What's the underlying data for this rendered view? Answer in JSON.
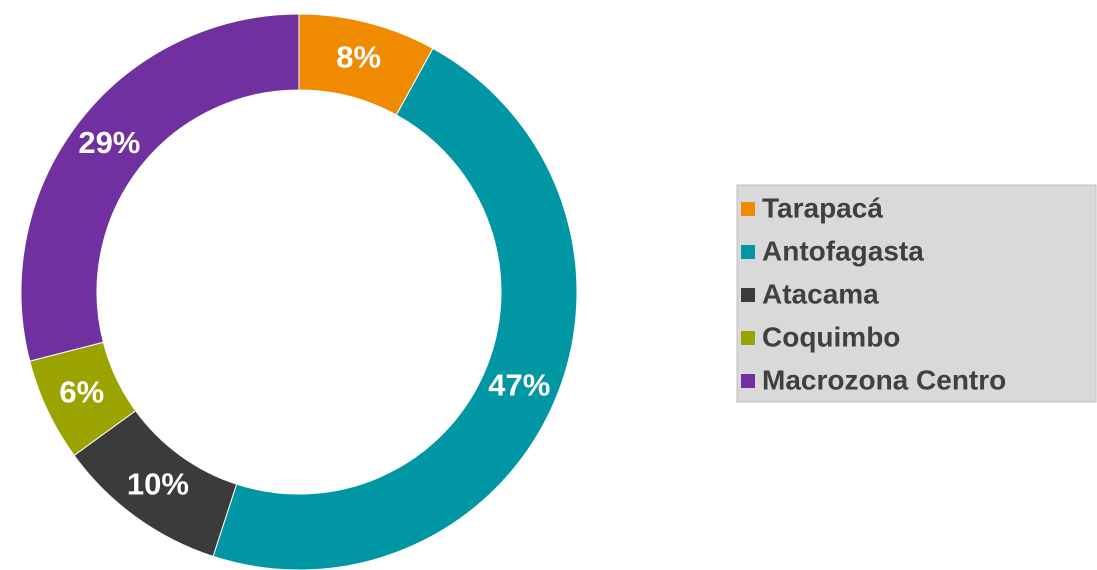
{
  "chart_data": {
    "type": "pie",
    "categories": [
      "Tarapacá",
      "Antofagasta",
      "Atacama",
      "Coquimbo",
      "Macrozona Centro"
    ],
    "values": [
      8,
      47,
      10,
      6,
      29
    ],
    "value_labels": [
      "8%",
      "47%",
      "10%",
      "6%",
      "29%"
    ],
    "colors": [
      "#f08a00",
      "#0096a3",
      "#3b3b3b",
      "#9aa300",
      "#7130a0"
    ],
    "legend": "right"
  }
}
